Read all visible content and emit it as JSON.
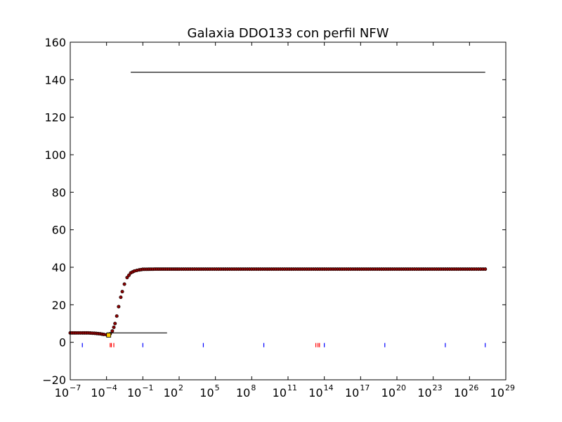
{
  "chart_data": {
    "type": "scatter",
    "title": "Galaxia DDO133 con perfil NFW",
    "xscale": "log",
    "xlim_exponents": [
      -7,
      29
    ],
    "xticks": [
      {
        "base": "10",
        "exp": "-7",
        "value": 1e-07
      },
      {
        "base": "10",
        "exp": "-4",
        "value": 0.0001
      },
      {
        "base": "10",
        "exp": "-1",
        "value": 0.1
      },
      {
        "base": "10",
        "exp": "2",
        "value": 100.0
      },
      {
        "base": "10",
        "exp": "5",
        "value": 100000.0
      },
      {
        "base": "10",
        "exp": "8",
        "value": 100000000.0
      },
      {
        "base": "10",
        "exp": "11",
        "value": 100000000000.0
      },
      {
        "base": "10",
        "exp": "14",
        "value": 100000000000000.0
      },
      {
        "base": "10",
        "exp": "17",
        "value": 1e+17
      },
      {
        "base": "10",
        "exp": "20",
        "value": 1e+20
      },
      {
        "base": "10",
        "exp": "23",
        "value": 1e+23
      },
      {
        "base": "10",
        "exp": "26",
        "value": 1e+26
      },
      {
        "base": "10",
        "exp": "29",
        "value": 1e+29
      }
    ],
    "ylim": [
      -20,
      160
    ],
    "yticks": [
      "−20",
      "0",
      "20",
      "40",
      "60",
      "80",
      "100",
      "120",
      "140",
      "160"
    ],
    "ytick_values": [
      -20,
      0,
      20,
      40,
      60,
      80,
      100,
      120,
      140,
      160
    ],
    "grid": false,
    "series": [
      {
        "style": "dots",
        "color": "#8b0000",
        "edge_color": "#000000",
        "points": [
          [
            1e-07,
            5.0
          ],
          [
            3e-07,
            5.0
          ],
          [
            1e-06,
            5.0
          ],
          [
            3e-06,
            5.0
          ],
          [
            1e-05,
            4.8
          ],
          [
            3e-05,
            4.5
          ],
          [
            6e-05,
            4.2
          ],
          [
            0.0001,
            4.0
          ],
          [
            0.0002,
            4.5
          ],
          [
            0.0003,
            6.0
          ],
          [
            0.0004,
            8.0
          ],
          [
            0.0005,
            10.0
          ],
          [
            0.0007,
            14.0
          ],
          [
            0.001,
            19.0
          ],
          [
            0.0015,
            24.0
          ],
          [
            0.002,
            27.0
          ],
          [
            0.003,
            31.0
          ],
          [
            0.005,
            34.5
          ],
          [
            0.01,
            37.0
          ],
          [
            0.02,
            38.0
          ],
          [
            0.05,
            38.6
          ],
          [
            0.1,
            38.9
          ],
          [
            1.0,
            39.0
          ],
          [
            10.0,
            39.0
          ],
          [
            100.0,
            39.0
          ],
          [
            10000.0,
            39.0
          ],
          [
            1000000.0,
            39.0
          ],
          [
            100000000.0,
            39.0
          ],
          [
            10000000000.0,
            39.0
          ],
          [
            1000000000000.0,
            39.0
          ],
          [
            100000000000000.0,
            39.0
          ],
          [
            1e+16,
            39.0
          ],
          [
            1e+18,
            39.0
          ],
          [
            1e+20,
            39.0
          ],
          [
            1e+22,
            39.0
          ],
          [
            1e+24,
            39.0
          ],
          [
            1e+26,
            39.0
          ],
          [
            2e+27,
            39.0
          ]
        ]
      },
      {
        "style": "line",
        "color": "#000000",
        "points": [
          [
            0.01,
            144.0
          ],
          [
            2e+27,
            144.0
          ]
        ]
      },
      {
        "style": "line",
        "color": "#000000",
        "points": [
          [
            0.0001,
            5.0
          ],
          [
            10.0,
            5.0
          ]
        ]
      },
      {
        "style": "marker",
        "color": "#ffcc00",
        "points": [
          [
            0.00015,
            3.8
          ]
        ]
      },
      {
        "style": "rug",
        "color": "#0000ff",
        "points": [
          [
            1e-06,
            -1.5
          ],
          [
            0.1,
            -1.5
          ],
          [
            10000.0,
            -1.5
          ],
          [
            1000000000.0,
            -1.5
          ],
          [
            100000000000000.0,
            -1.5
          ],
          [
            1e+19,
            -1.5
          ],
          [
            1e+24,
            -1.5
          ],
          [
            2e+27,
            -1.5
          ]
        ]
      },
      {
        "style": "rug",
        "color": "#ff0000",
        "points": [
          [
            0.0002,
            -1.5
          ],
          [
            0.00025,
            -1.5
          ],
          [
            0.0004,
            -1.5
          ],
          [
            20000000000000.0,
            -1.5
          ],
          [
            30000000000000.0,
            -1.5
          ],
          [
            40000000000000.0,
            -1.5
          ]
        ]
      }
    ]
  }
}
